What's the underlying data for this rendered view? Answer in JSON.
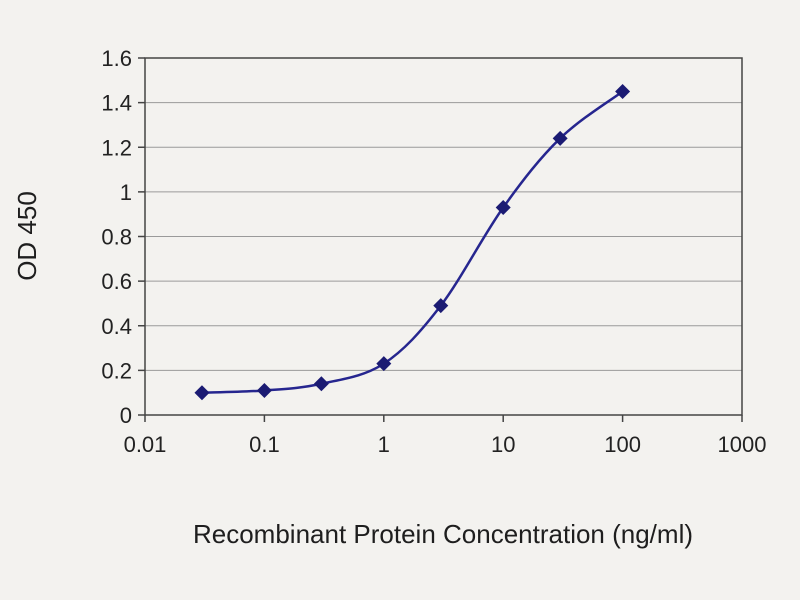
{
  "figure": {
    "background_color": "#f3f2ef",
    "description": "ELISA sigmoidal standard curve"
  },
  "chart_data": {
    "type": "line",
    "x": [
      0.03,
      0.1,
      0.3,
      1,
      3,
      10,
      30,
      100
    ],
    "y": [
      0.1,
      0.11,
      0.14,
      0.23,
      0.49,
      0.93,
      1.24,
      1.45
    ],
    "title": "",
    "xlabel": "Recombinant Protein Concentration (ng/ml)",
    "ylabel": "OD 450",
    "x_scale": "log",
    "xlim": [
      0.01,
      1000
    ],
    "ylim": [
      0,
      1.6
    ],
    "x_ticks": [
      0.01,
      0.1,
      1,
      10,
      100,
      1000
    ],
    "x_tick_labels": [
      "0.01",
      "0.1",
      "1",
      "10",
      "100",
      "1000"
    ],
    "y_ticks": [
      0,
      0.2,
      0.4,
      0.6,
      0.8,
      1,
      1.2,
      1.4,
      1.6
    ],
    "y_tick_labels": [
      "0",
      "0.2",
      "0.4",
      "0.6",
      "0.8",
      "1",
      "1.2",
      "1.4",
      "1.6"
    ],
    "grid": "horizontal",
    "legend": "none",
    "marker": "diamond",
    "line_color": "#26268f",
    "marker_color": "#1b1b73",
    "grid_color": "#9a9a9a",
    "axis_color": "#444444",
    "tick_label_color": "#222222",
    "label_color": "#1e1e1e"
  }
}
